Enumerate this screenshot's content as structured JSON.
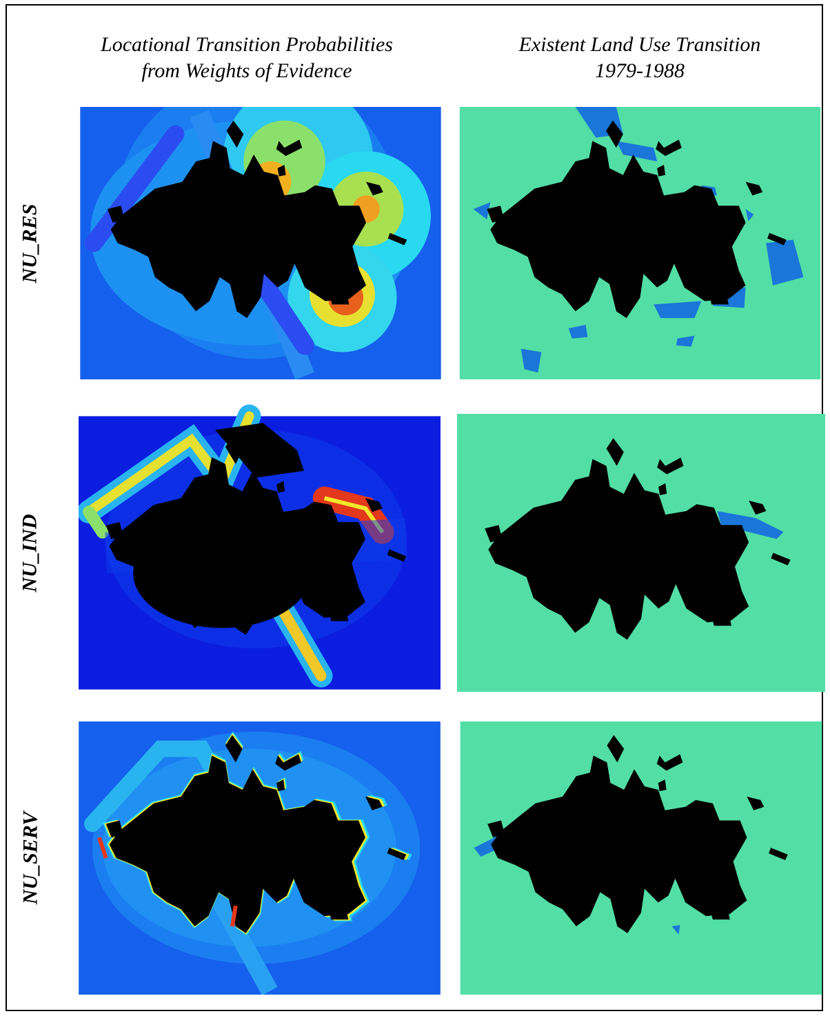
{
  "headers": {
    "left": [
      "Locational Transition Probabilities",
      "from Weights of Evidence"
    ],
    "right": [
      "Existent Land Use Transition",
      "1979-1988"
    ]
  },
  "rows": [
    {
      "label": "NU_RES",
      "transition_patches": "many",
      "hotspots": "several"
    },
    {
      "label": "NU_IND",
      "transition_patches": "one",
      "hotspots": "road corridors"
    },
    {
      "label": "NU_SERV",
      "transition_patches": "few",
      "hotspots": "urban edges"
    }
  ],
  "colors": {
    "urban": "#000000",
    "transition_bg": "#52dea4",
    "transition_patch": "#1a76d8",
    "prob_low": "#0c2fe6",
    "prob_mid": "#29d9f2",
    "prob_high": "#f2e82a",
    "prob_max": "#e3381c"
  }
}
